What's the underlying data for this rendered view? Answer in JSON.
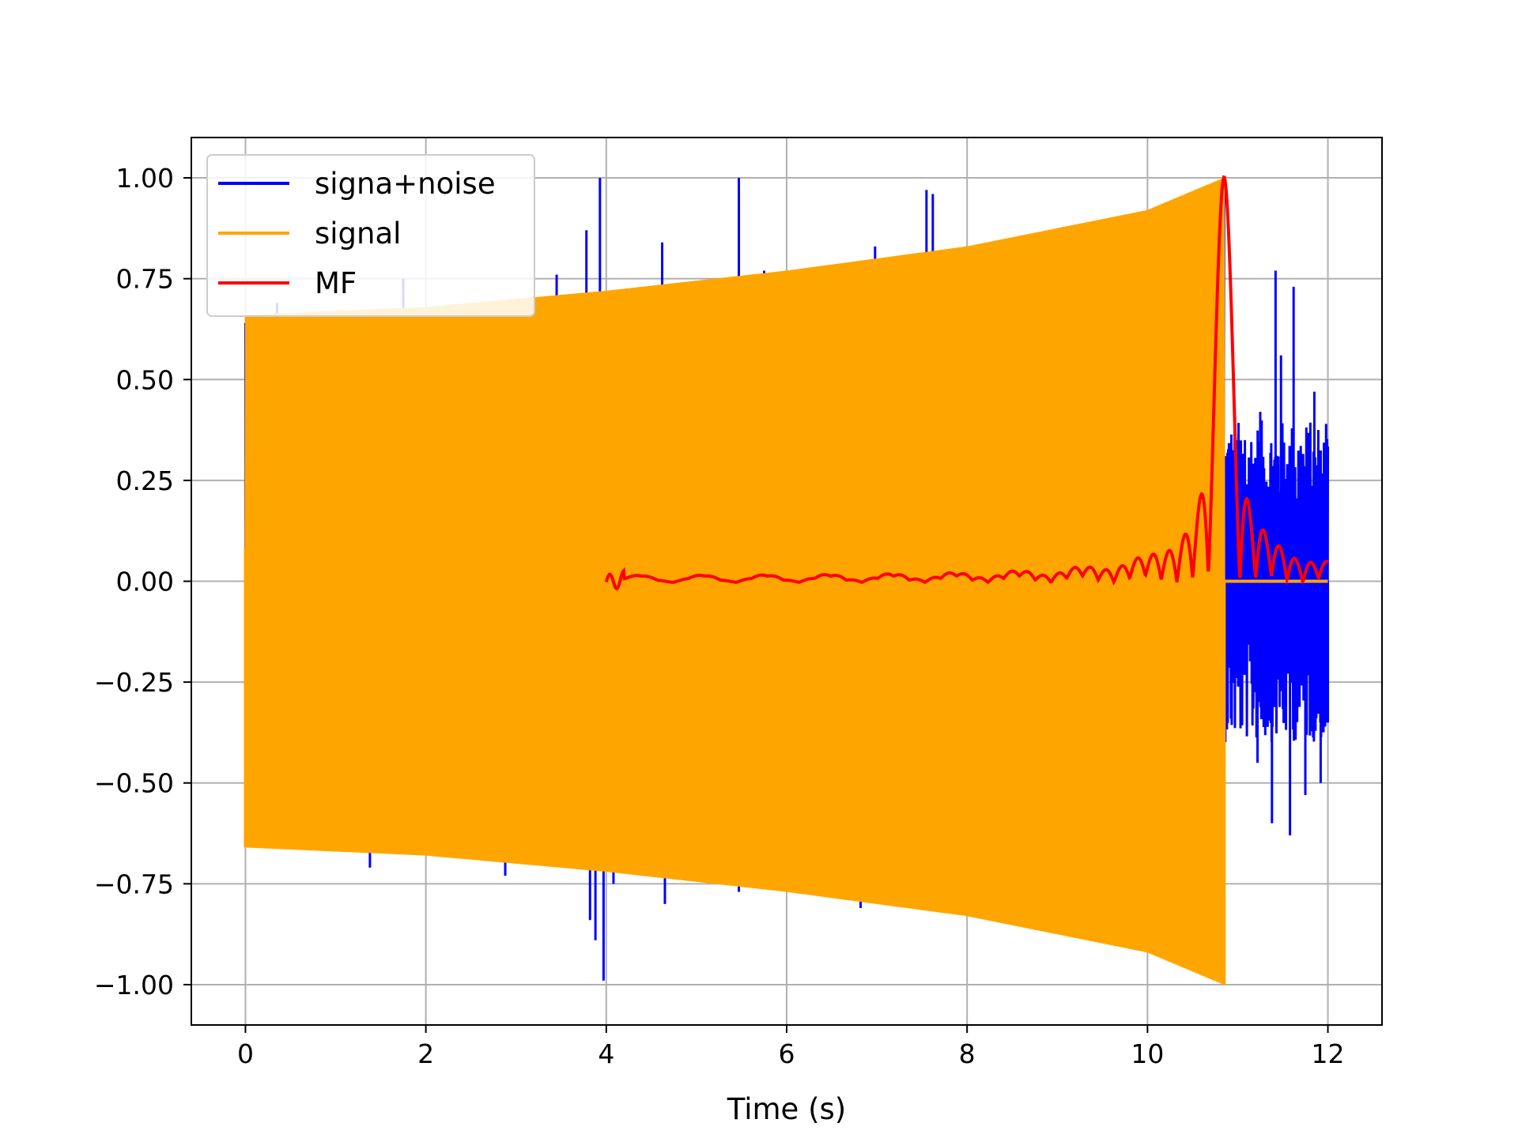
{
  "chart_data": {
    "type": "line",
    "title": "",
    "xlabel": "Time (s)",
    "ylabel": "",
    "xlim": [
      -0.6,
      12.6
    ],
    "ylim": [
      -1.1,
      1.1
    ],
    "x_ticks": [
      0,
      2,
      4,
      6,
      8,
      10,
      12
    ],
    "x_tick_labels": [
      "0",
      "2",
      "4",
      "6",
      "8",
      "10",
      "12"
    ],
    "y_ticks": [
      1.0,
      0.75,
      0.5,
      0.25,
      0.0,
      -0.25,
      -0.5,
      -0.75,
      -1.0
    ],
    "y_tick_labels": [
      "1.00",
      "0.75",
      "0.50",
      "0.25",
      "0.00",
      "−0.25",
      "−0.50",
      "−0.75",
      "−1.00"
    ],
    "grid": true,
    "legend_position": "top-left",
    "series": [
      {
        "name": "signa+noise",
        "color": "#0000ff",
        "description": "signal plus impulsive noise, 0 to 12 s",
        "noise_spikes": [
          {
            "x": 0.02,
            "y": 0.3
          },
          {
            "x": 0.35,
            "y": 0.69
          },
          {
            "x": 0.55,
            "y": 0.58
          },
          {
            "x": 0.92,
            "y": 0.66
          },
          {
            "x": 1.38,
            "y": -0.71
          },
          {
            "x": 1.75,
            "y": 0.75
          },
          {
            "x": 2.88,
            "y": -0.73
          },
          {
            "x": 3.45,
            "y": 0.76
          },
          {
            "x": 3.78,
            "y": 0.87
          },
          {
            "x": 3.82,
            "y": -0.84
          },
          {
            "x": 3.88,
            "y": -0.89
          },
          {
            "x": 3.93,
            "y": 1.0
          },
          {
            "x": 3.97,
            "y": -0.99
          },
          {
            "x": 4.08,
            "y": -0.75
          },
          {
            "x": 4.62,
            "y": 0.84
          },
          {
            "x": 4.65,
            "y": -0.8
          },
          {
            "x": 5.47,
            "y": 1.0
          },
          {
            "x": 5.47,
            "y": -0.77
          },
          {
            "x": 5.75,
            "y": 0.77
          },
          {
            "x": 6.82,
            "y": -0.81
          },
          {
            "x": 6.98,
            "y": 0.83
          },
          {
            "x": 7.28,
            "y": 0.8
          },
          {
            "x": 7.55,
            "y": 0.97
          },
          {
            "x": 7.58,
            "y": -0.81
          },
          {
            "x": 7.62,
            "y": 0.96
          }
        ],
        "tail_start": 10.85,
        "tail_end": 12.0,
        "tail_extremes": [
          {
            "x": 11.08,
            "y": 0.35
          },
          {
            "x": 11.22,
            "y": -0.45
          },
          {
            "x": 11.25,
            "y": 0.42
          },
          {
            "x": 11.38,
            "y": -0.6
          },
          {
            "x": 11.42,
            "y": 0.77
          },
          {
            "x": 11.48,
            "y": 0.56
          },
          {
            "x": 11.58,
            "y": -0.63
          },
          {
            "x": 11.62,
            "y": 0.73
          },
          {
            "x": 11.75,
            "y": -0.53
          },
          {
            "x": 11.85,
            "y": 0.47
          },
          {
            "x": 11.92,
            "y": -0.5
          },
          {
            "x": 11.98,
            "y": 0.39
          },
          {
            "x": 12.0,
            "y": -0.35
          }
        ]
      },
      {
        "name": "signal",
        "color": "#ffa500",
        "description": "chirp oscillation with growing envelope, zero after cutoff",
        "start": 0.0,
        "cutoff": 10.85,
        "end": 12.0,
        "envelope_points": [
          {
            "x": 0.0,
            "y": 0.66
          },
          {
            "x": 2.0,
            "y": 0.68
          },
          {
            "x": 4.0,
            "y": 0.72
          },
          {
            "x": 6.0,
            "y": 0.77
          },
          {
            "x": 8.0,
            "y": 0.83
          },
          {
            "x": 10.0,
            "y": 0.92
          },
          {
            "x": 10.85,
            "y": 1.0
          }
        ]
      },
      {
        "name": "MF",
        "color": "#ff0000",
        "description": "matched filter output, 4 to 12 s, peak at 10.85 s",
        "start": 4.0,
        "end": 12.0,
        "peak_x": 10.85,
        "peak_y": 1.0,
        "end_y": 0.01
      }
    ]
  }
}
